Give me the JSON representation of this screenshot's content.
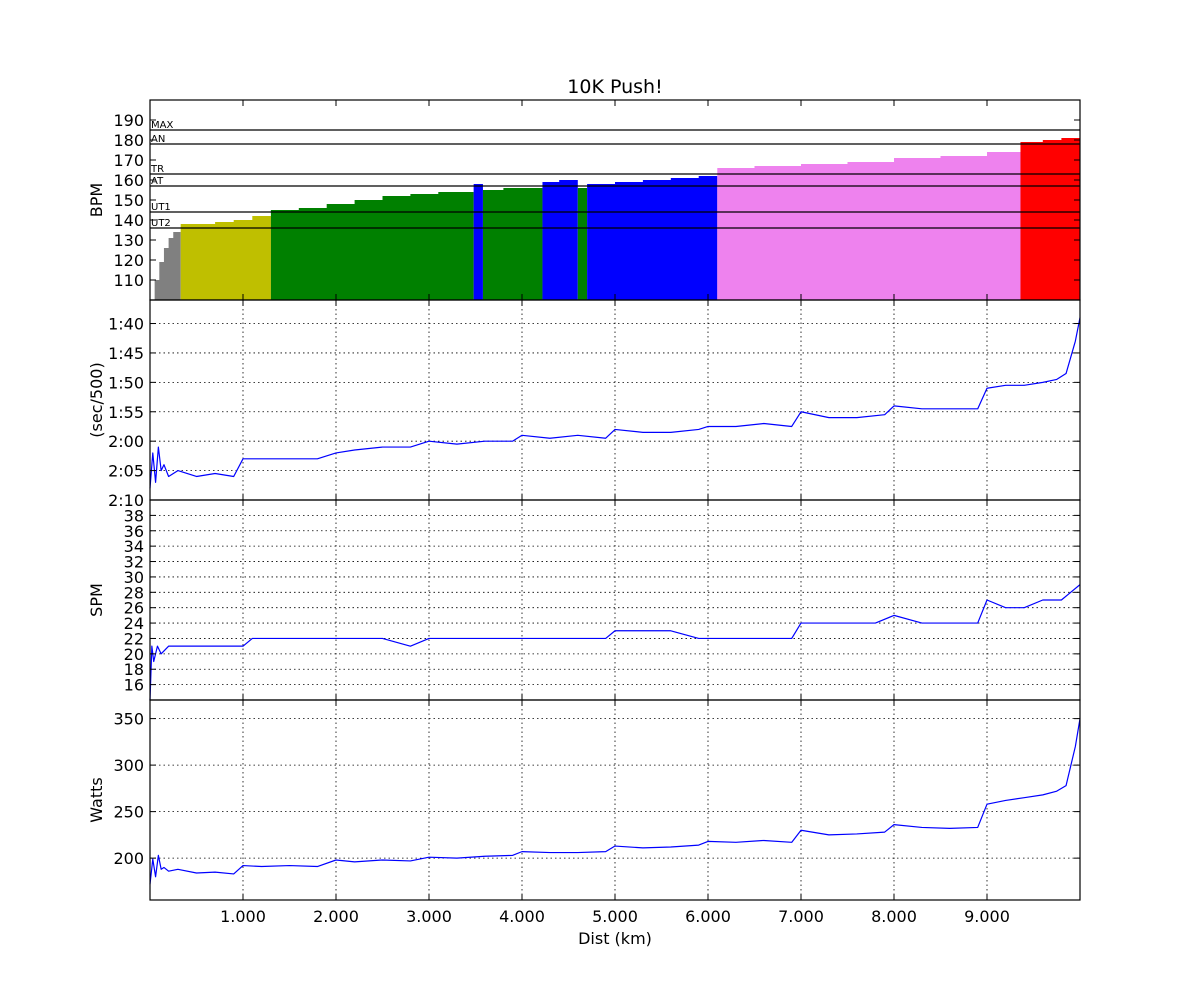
{
  "chart_data": [
    {
      "type": "area",
      "panel": "heart-rate",
      "title": "10K Push!",
      "ylabel": "BPM",
      "xlim": [
        0,
        10.0
      ],
      "ylim": [
        100,
        200
      ],
      "yticks": [
        110,
        120,
        130,
        140,
        150,
        160,
        170,
        180,
        190
      ],
      "grid": false,
      "thresholds": [
        {
          "label": "MAX",
          "value": 185
        },
        {
          "label": "AN",
          "value": 178
        },
        {
          "label": "TR",
          "value": 163
        },
        {
          "label": "AT",
          "value": 157
        },
        {
          "label": "UT1",
          "value": 144
        },
        {
          "label": "UT2",
          "value": 136
        }
      ],
      "zone_colors": {
        "rest": "#808080",
        "ut2": "#bfbf00",
        "ut1": "#008000",
        "at": "#0000ff",
        "tr": "#ee82ee",
        "an": "#ff0000"
      },
      "series": [
        {
          "zone": "rest",
          "x": [
            0.0,
            0.05,
            0.1,
            0.15,
            0.2,
            0.25,
            0.33
          ],
          "values": [
            100,
            110,
            119,
            126,
            131,
            134,
            136
          ]
        },
        {
          "zone": "ut2",
          "x": [
            0.33,
            0.5,
            0.7,
            0.9,
            1.1,
            1.3
          ],
          "values": [
            138,
            138,
            139,
            140,
            142,
            144
          ]
        },
        {
          "zone": "ut1",
          "x": [
            1.3,
            1.6,
            1.9,
            2.2,
            2.5,
            2.8,
            3.1,
            3.48
          ],
          "values": [
            145,
            146,
            148,
            150,
            152,
            153,
            154,
            156
          ]
        },
        {
          "zone": "at",
          "x": [
            3.48,
            3.58
          ],
          "values": [
            158,
            158
          ]
        },
        {
          "zone": "ut1",
          "x": [
            3.58,
            3.8,
            4.0,
            4.22
          ],
          "values": [
            155,
            156,
            156,
            156
          ]
        },
        {
          "zone": "at",
          "x": [
            4.22,
            4.4,
            4.6
          ],
          "values": [
            159,
            160,
            158
          ]
        },
        {
          "zone": "ut1",
          "x": [
            4.6,
            4.7
          ],
          "values": [
            156,
            156
          ]
        },
        {
          "zone": "at",
          "x": [
            4.7,
            5.0,
            5.3,
            5.6,
            5.9,
            6.1
          ],
          "values": [
            158,
            159,
            160,
            161,
            162,
            162
          ]
        },
        {
          "zone": "tr",
          "x": [
            6.1,
            6.5,
            7.0,
            7.5,
            8.0,
            8.5,
            9.0,
            9.36
          ],
          "values": [
            166,
            167,
            168,
            169,
            171,
            172,
            174,
            177
          ]
        },
        {
          "zone": "an",
          "x": [
            9.36,
            9.6,
            9.8,
            10.0
          ],
          "values": [
            179,
            180,
            181,
            182
          ]
        }
      ]
    },
    {
      "type": "line",
      "panel": "pace",
      "ylabel": "(sec/500)",
      "xlim": [
        0,
        10.0
      ],
      "ylim": [
        130,
        96
      ],
      "yticks": [
        100,
        105,
        110,
        115,
        120,
        125,
        130
      ],
      "yticklabels": [
        "1:40",
        "1:45",
        "1:50",
        "1:55",
        "2:00",
        "2:05",
        "2:10"
      ],
      "grid": true,
      "series": [
        {
          "x": [
            0.0,
            0.03,
            0.06,
            0.09,
            0.12,
            0.15,
            0.2,
            0.3,
            0.5,
            0.7,
            0.9,
            1.0,
            1.2,
            1.5,
            1.8,
            2.0,
            2.2,
            2.5,
            2.8,
            3.0,
            3.3,
            3.6,
            3.9,
            4.0,
            4.3,
            4.6,
            4.9,
            5.0,
            5.3,
            5.6,
            5.9,
            6.0,
            6.3,
            6.6,
            6.9,
            7.0,
            7.3,
            7.6,
            7.9,
            8.0,
            8.3,
            8.6,
            8.9,
            9.0,
            9.2,
            9.4,
            9.6,
            9.75,
            9.85,
            9.95,
            10.0
          ],
          "values": [
            128,
            122,
            127,
            121,
            125,
            124,
            126,
            125,
            126,
            125.5,
            126,
            123,
            123,
            123,
            123,
            122,
            121.5,
            121,
            121,
            120,
            120.5,
            120,
            120,
            119,
            119.5,
            119,
            119.5,
            118,
            118.5,
            118.5,
            118,
            117.5,
            117.5,
            117,
            117.5,
            115,
            116,
            116,
            115.5,
            114,
            114.5,
            114.5,
            114.5,
            111,
            110.5,
            110.5,
            110,
            109.5,
            108.5,
            103,
            99
          ]
        }
      ]
    },
    {
      "type": "line",
      "panel": "stroke-rate",
      "ylabel": "SPM",
      "xlim": [
        0,
        10.0
      ],
      "ylim": [
        14,
        40
      ],
      "yticks": [
        16,
        18,
        20,
        22,
        24,
        26,
        28,
        30,
        32,
        34,
        36,
        38
      ],
      "grid": true,
      "series": [
        {
          "x": [
            0.0,
            0.02,
            0.04,
            0.08,
            0.12,
            0.2,
            0.5,
            1.0,
            1.1,
            1.3,
            1.5,
            2.0,
            2.2,
            2.5,
            2.8,
            3.0,
            3.3,
            3.6,
            3.9,
            4.0,
            4.3,
            4.6,
            4.9,
            5.0,
            5.3,
            5.6,
            5.9,
            6.0,
            6.3,
            6.6,
            6.9,
            7.0,
            7.2,
            7.4,
            7.6,
            7.8,
            8.0,
            8.3,
            8.6,
            8.9,
            9.0,
            9.2,
            9.4,
            9.6,
            9.8,
            9.9,
            10.0
          ],
          "values": [
            14,
            21,
            19,
            21,
            20,
            21,
            21,
            21,
            22,
            22,
            22,
            22,
            22,
            22,
            21,
            22,
            22,
            22,
            22,
            22,
            22,
            22,
            22,
            23,
            23,
            23,
            22,
            22,
            22,
            22,
            22,
            24,
            24,
            24,
            24,
            24,
            25,
            24,
            24,
            24,
            27,
            26,
            26,
            27,
            27,
            28,
            29
          ]
        }
      ]
    },
    {
      "type": "line",
      "panel": "power",
      "ylabel": "Watts",
      "xlabel": "Dist (km)",
      "xlim": [
        0,
        10.0
      ],
      "xticks": [
        1,
        2,
        3,
        4,
        5,
        6,
        7,
        8,
        9
      ],
      "xticklabels": [
        "1.000",
        "2.000",
        "3.000",
        "4.000",
        "5.000",
        "6.000",
        "7.000",
        "8.000",
        "9.000"
      ],
      "ylim": [
        155,
        370
      ],
      "yticks": [
        200,
        250,
        300,
        350
      ],
      "grid": true,
      "series": [
        {
          "x": [
            0.0,
            0.03,
            0.06,
            0.09,
            0.12,
            0.15,
            0.2,
            0.3,
            0.5,
            0.7,
            0.9,
            1.0,
            1.2,
            1.5,
            1.8,
            2.0,
            2.2,
            2.5,
            2.8,
            3.0,
            3.3,
            3.6,
            3.9,
            4.0,
            4.3,
            4.6,
            4.9,
            5.0,
            5.3,
            5.6,
            5.9,
            6.0,
            6.3,
            6.6,
            6.9,
            7.0,
            7.3,
            7.6,
            7.9,
            8.0,
            8.3,
            8.6,
            8.9,
            9.0,
            9.2,
            9.4,
            9.6,
            9.75,
            9.85,
            9.95,
            10.0
          ],
          "values": [
            172,
            199,
            180,
            203,
            188,
            190,
            186,
            188,
            184,
            185,
            183,
            192,
            191,
            192,
            191,
            198,
            196,
            198,
            197,
            201,
            200,
            202,
            203,
            207,
            206,
            206,
            207,
            213,
            211,
            212,
            214,
            218,
            217,
            219,
            217,
            230,
            225,
            226,
            228,
            236,
            233,
            232,
            233,
            258,
            262,
            265,
            268,
            272,
            278,
            320,
            350
          ]
        }
      ]
    }
  ]
}
